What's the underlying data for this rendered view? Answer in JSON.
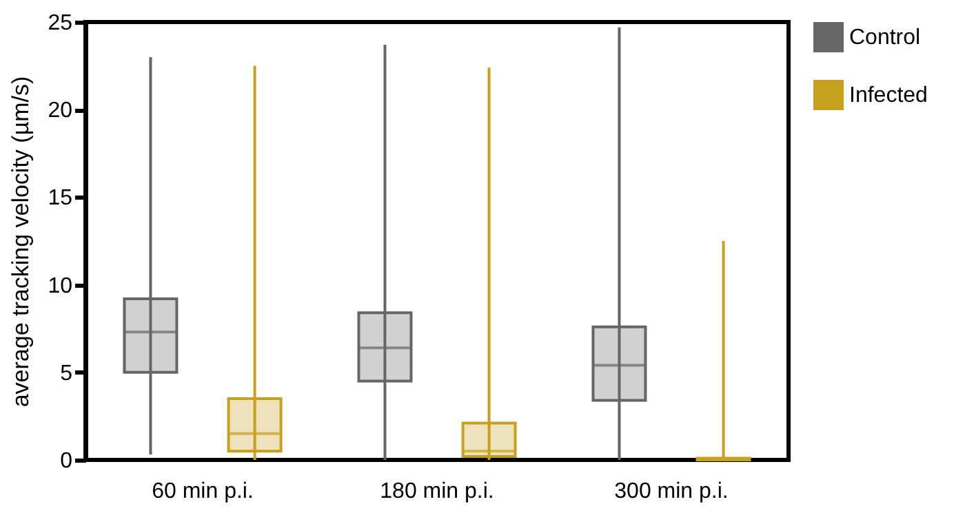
{
  "chart_data": {
    "type": "box",
    "ylabel": "average tracking velocity (µm/s)",
    "categories": [
      "60 min p.i.",
      "180 min p.i.",
      "300 min p.i."
    ],
    "series": [
      {
        "name": "Control",
        "color": "#666666",
        "boxes": [
          {
            "low": 0.3,
            "q1": 5.0,
            "median": 7.3,
            "q3": 9.2,
            "high": 23
          },
          {
            "low": 0,
            "q1": 4.5,
            "median": 6.4,
            "q3": 8.4,
            "high": 23.7
          },
          {
            "low": 0,
            "q1": 3.4,
            "median": 5.4,
            "q3": 7.6,
            "high": 24.7
          }
        ]
      },
      {
        "name": "Infected",
        "color": "#c8a020",
        "boxes": [
          {
            "low": 0,
            "q1": 0.5,
            "median": 1.5,
            "q3": 3.5,
            "high": 22.5
          },
          {
            "low": 0,
            "q1": 0.2,
            "median": 0.5,
            "q3": 2.1,
            "high": 22.4
          },
          {
            "low": 0,
            "q1": 0,
            "median": 0.05,
            "q3": 0.1,
            "high": 12.5
          }
        ]
      }
    ],
    "ylim": [
      0,
      25
    ],
    "yticks": [
      0,
      5,
      10,
      15,
      20,
      25
    ],
    "grid": false,
    "legend": "right"
  }
}
